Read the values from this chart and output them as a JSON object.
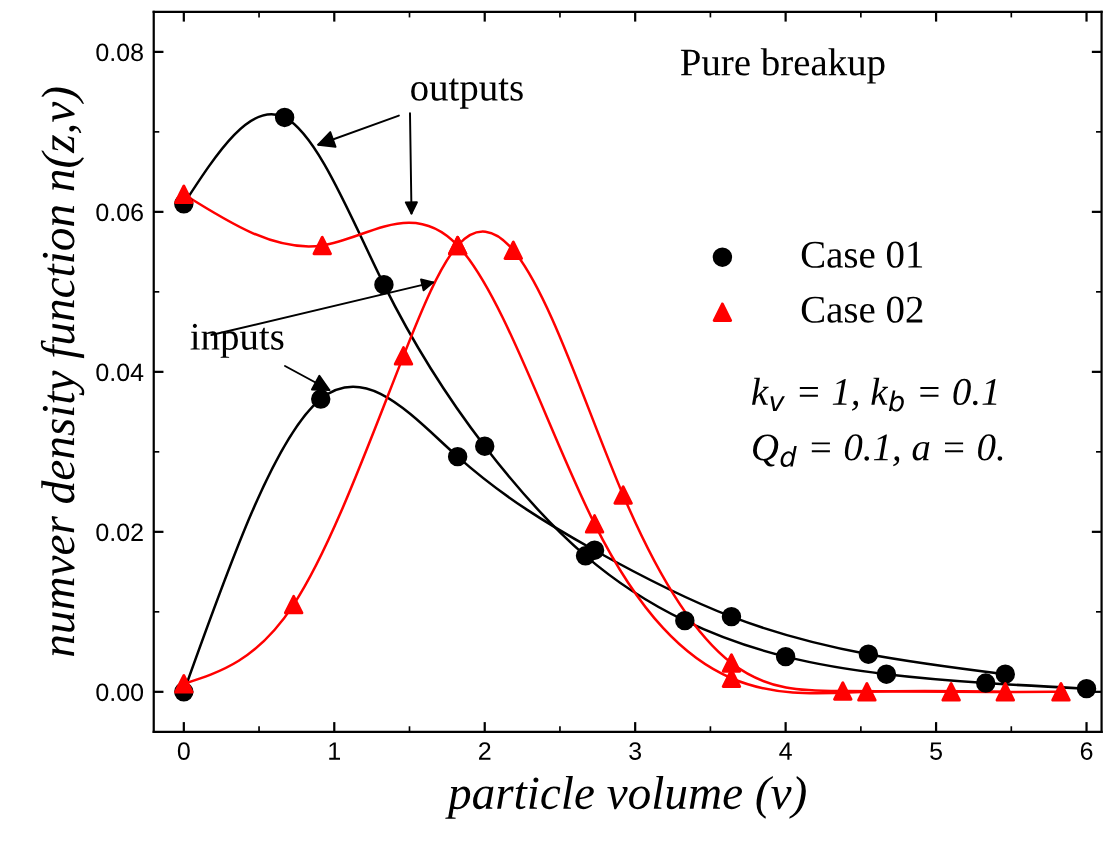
{
  "chart_data": {
    "type": "line",
    "xlabel": "particle volume (v)",
    "ylabel": "numver density function n(z,v)",
    "xlim": [
      -0.2,
      6.1
    ],
    "ylim": [
      -0.005,
      0.085
    ],
    "xticks": [
      0,
      1,
      2,
      3,
      4,
      5,
      6
    ],
    "yticks": [
      {
        "value": 0,
        "label": "0.00"
      },
      {
        "value": 0.02,
        "label": "0.02"
      },
      {
        "value": 0.04,
        "label": "0.04"
      },
      {
        "value": 0.06,
        "label": "0.06"
      },
      {
        "value": 0.08,
        "label": "0.08"
      }
    ],
    "grid": false,
    "legend": "center right",
    "line_style": "solid",
    "series": [
      {
        "name": "Case 01",
        "color": "#000000",
        "marker": "circle",
        "x": [
          0,
          0.67,
          1.33,
          2.0,
          2.67,
          3.33,
          4.0,
          4.67,
          5.33,
          6.0
        ],
        "values": [
          0.061,
          0.0718,
          0.0509,
          0.0307,
          0.017,
          0.0089,
          0.0044,
          0.0022,
          0.0011,
          0.0004
        ]
      },
      {
        "color": "#000000",
        "marker": "circle",
        "x": [
          0,
          0.91,
          1.82,
          2.73,
          3.64,
          4.55,
          5.46
        ],
        "values": [
          0.0,
          0.0366,
          0.0294,
          0.0177,
          0.0094,
          0.0047,
          0.0022
        ]
      },
      {
        "name": "Case 02",
        "color": "#ff0000",
        "marker": "triangle",
        "x": [
          0,
          0.92,
          1.82,
          2.73,
          3.64,
          4.54,
          5.46
        ],
        "values": [
          0.0622,
          0.0558,
          0.0558,
          0.021,
          0.0017,
          0.0,
          0.0
        ]
      },
      {
        "color": "#ff0000",
        "marker": "triangle",
        "x": [
          0,
          0.73,
          1.46,
          1.82,
          2.19,
          2.92,
          3.64,
          4.38,
          5.1,
          5.83
        ],
        "values": [
          0.001,
          0.0109,
          0.042,
          0.0558,
          0.0552,
          0.0246,
          0.0036,
          0.0001,
          0.0,
          0.0
        ]
      }
    ],
    "annotations": [
      "Pure breakup",
      "k$_{v}$ = 1, k$_{b}$ = 0.1",
      "Q$_{d}$ = 0.1, a = 0.",
      {
        "text": "outputs",
        "x": 0.88,
        "y": 0.0683
      },
      {
        "text": "inputs",
        "x": 0.98,
        "y": 0.0376
      }
    ]
  }
}
